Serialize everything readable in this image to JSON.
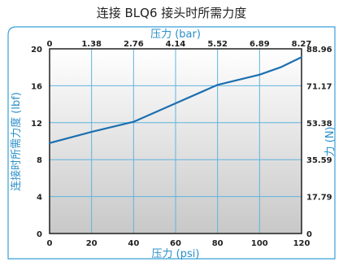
{
  "chart_data": {
    "type": "line",
    "title": "连接 BLQ6 接头时所需力度",
    "x_bottom": {
      "label": "压力 (psi)",
      "ticks": [
        "0",
        "20",
        "40",
        "60",
        "80",
        "100",
        "120"
      ],
      "range": [
        0,
        120
      ]
    },
    "x_top": {
      "label": "压力 (bar)",
      "ticks": [
        "0",
        "1.38",
        "2.76",
        "4.14",
        "5.52",
        "6.89",
        "8.27"
      ]
    },
    "y_left": {
      "label": "连接时所需力度 (lbf)",
      "ticks": [
        "0",
        "4",
        "8",
        "12",
        "16",
        "20"
      ],
      "range": [
        0,
        20
      ]
    },
    "y_right": {
      "label": "力 (N)",
      "ticks": [
        "0",
        "17.79",
        "35.59",
        "53.38",
        "71.17",
        "88.96"
      ]
    },
    "grid": true,
    "x": [
      0,
      20,
      40,
      60,
      80,
      100,
      110,
      120
    ],
    "series": [
      {
        "values": [
          9.8,
          11,
          12.1,
          14.1,
          16.1,
          17.2,
          18.0,
          19.1
        ]
      }
    ],
    "colors": {
      "accent": "#2b8fc9",
      "line": "#1b6fb0",
      "grid": "#5fb4de",
      "frame": "#3aa0d8",
      "fill_top": "#ffffff",
      "fill_bottom": "#c8c8c8"
    }
  }
}
